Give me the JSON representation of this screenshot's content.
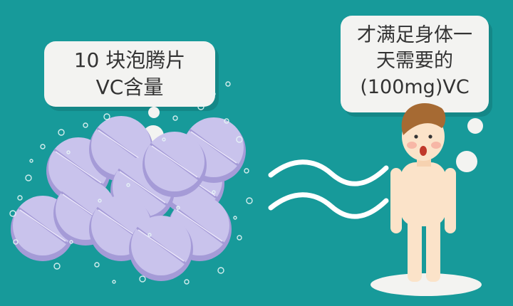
{
  "left_bubble": {
    "line1": "10 块泡腾片",
    "line2": "VC含量"
  },
  "right_bubble": {
    "line1": "才满足身体一",
    "line2": "天需要的",
    "line3": "(100mg)VC"
  },
  "colors": {
    "background": "#179A9A",
    "tablet": "#C9C3EC",
    "tablet_shade": "#A59BD7",
    "bubble": "#F3F3F1",
    "skin": "#FBE3C9",
    "hair": "#A66A33"
  },
  "icons": [
    "effervescent-tablet-icon",
    "approximately-equal-icon",
    "child-figure-icon"
  ]
}
